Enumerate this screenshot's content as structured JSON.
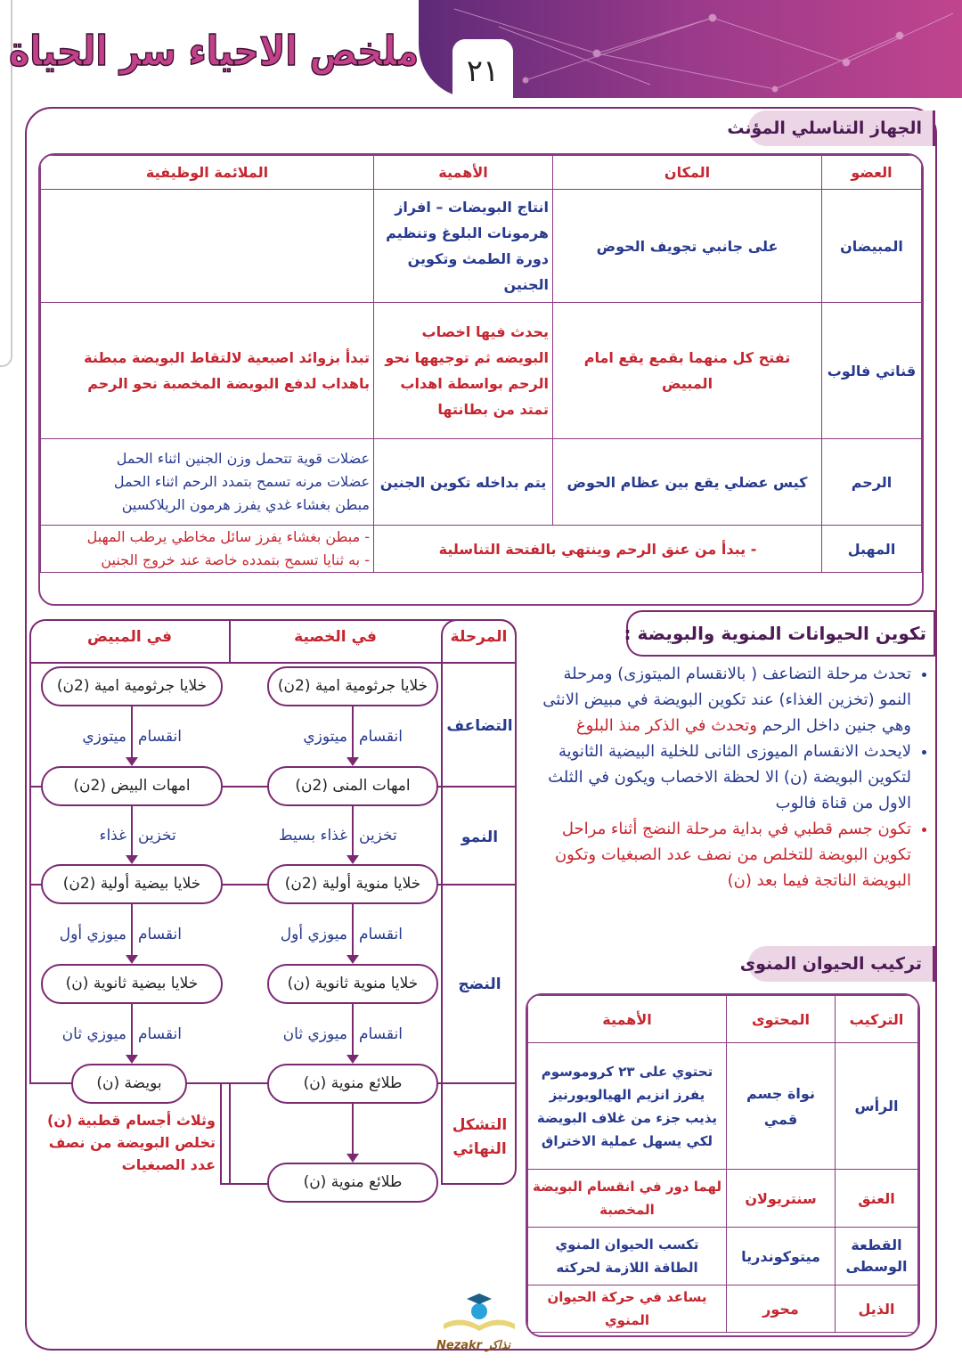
{
  "header": {
    "title": "ملخص الاحياء سر الحياة",
    "page_number": "٢١"
  },
  "female_system": {
    "heading": "الجهاز التناسلي المؤنث",
    "columns": [
      "العضو",
      "المكان",
      "الأهمية",
      "الملائمة الوظيفية"
    ],
    "rows": [
      {
        "organ": "المبيضان",
        "place": "على جانبي تجويف الحوض",
        "importance": "انتاج البويضات – افراز هرمونات البلوغ وتنظيم دورة الطمث وتكوين الجنين",
        "adaptation": ""
      },
      {
        "organ": "قناتي فالوب",
        "place": "تفتح كل منهما بقمع يقع امام المبيض",
        "importance": "يحدث فيها اخصاب البويضه ثم توجيهها نحو الرحم بواسطة اهداب تمتد من بطانتها",
        "adaptation": "تبدأ بزوائد اصبعية لالتقاط البويضة مبطنة باهداب لدفع البويضة المخصبة نحو الرحم"
      },
      {
        "organ": "الرحم",
        "place": "كيس عضلي يقع بين عظام الحوض",
        "importance": "يتم بداخله تكوين الجنين",
        "adaptation_lines": [
          "عضلات قوية تتحمل وزن الجنين اثناء الحمل",
          "عضلات مرنه تسمح بتمدد الرحم اثناء الحمل",
          "مبطن بغشاء غدي يفرز هرمون الريلاكسين"
        ]
      },
      {
        "organ": "المهبل",
        "place_importance": "- يبدأ من عنق الرحم وينتهي بالفتحة التناسلية",
        "adaptation_lines": [
          "- مبطن بغشاء يفرز سائل مخاطي يرطب المهبل",
          "- به ثنايا تسمح بتمدده خاصة عند خروج الجنين"
        ]
      }
    ]
  },
  "gametogenesis": {
    "heading": "تكوين الحيوانات المنوية والبويضة :",
    "bullets": [
      {
        "blue": "تحدث مرحلة التضاعف ( بالانقسام الميتوزى) ومرحلة النمو (تخزين الغذاء) عند تكوين البويضة في مبيض الانثى وهي جنين داخل الرحم",
        "red": "وتحدث في الذكر منذ البلوغ"
      },
      {
        "blue": "لايحدث الانقسام الميوزى الثانى للخلية البيضية الثانوية لتكوين البويضة (ن) الا لحظة الاخصاب ويكون في الثلث الاول من قناة فالوب",
        "red": ""
      },
      {
        "blue": "",
        "red": "تكون جسم قطبي في بداية مرحلة النضج أثناء مراحل تكوين البويضة للتخلص من نصف عدد الصبغيات وتكون البويضة الناتجة فيما بعد (ن)"
      }
    ]
  },
  "flow": {
    "headers": {
      "stage": "المرحلة",
      "testis": "في الخصية",
      "ovary": "في المبيض"
    },
    "stages": [
      "التضاعف",
      "النمو",
      "النضج",
      "التشكل النهائي"
    ],
    "testis_boxes": [
      "خلايا جرثومية امية (2ن)",
      "امهات المنى (2ن)",
      "خلايا منوية أولية (2ن)",
      "خلايا منوية ثانوية (ن)",
      "طلائع منوية (ن)",
      "طلائع منوية (ن)"
    ],
    "ovary_boxes": [
      "خلايا جرثومية امية (2ن)",
      "امهات البيض (2ن)",
      "خلايا بيضية أولية (2ن)",
      "خلايا بيضية ثانوية (ن)",
      "بويضة (ن)"
    ],
    "testis_arrows": [
      [
        "انقسام",
        "ميتوزي"
      ],
      [
        "تخزين",
        "غذاء بسيط"
      ],
      [
        "انقسام",
        "ميوزي أول"
      ],
      [
        "انقسام",
        "ميوزي ثان"
      ]
    ],
    "ovary_arrows": [
      [
        "انقسام",
        "ميتوزي"
      ],
      [
        "تخزين",
        "غذاء"
      ],
      [
        "انقسام",
        "ميوزي أول"
      ],
      [
        "انقسام",
        "ميوزي ثان"
      ]
    ],
    "polar_note": "وثلاث أجسام قطبية (ن) تخلص البويضة من نصف عدد الصبغيات"
  },
  "sperm": {
    "heading": "تركيب الحيوان المنوى",
    "columns": [
      "التركيب",
      "المحتوى",
      "الأهمية"
    ],
    "rows": [
      {
        "part": "الرأس",
        "content": "نواة جسم قمي",
        "importance": "تحتوي على ٢٣ كروموسوم يفرز انزيم الهيالويورنيز يذيب جزء من غلاف البويضة لكي يسهل عملية الاختراق",
        "color": "blue"
      },
      {
        "part": "العنق",
        "content": "سنتريولان",
        "importance": "لهما دور في انقسام البويضة المخصبة",
        "color": "red"
      },
      {
        "part": "القطعة الوسطى",
        "content": "ميتوكوندريا",
        "importance": "تكسب الحيوان المنوي الطاقة اللازمة لحركته",
        "color": "blue"
      },
      {
        "part": "الذيل",
        "content": "محور",
        "importance": "يساعد في حركة الحيوان المنوي",
        "color": "red"
      }
    ]
  },
  "logo": {
    "text": "Nezakr نذاكر"
  },
  "colors": {
    "accent": "#7b2a72",
    "blue_text": "#283a8e",
    "red_text": "#c5262f"
  }
}
